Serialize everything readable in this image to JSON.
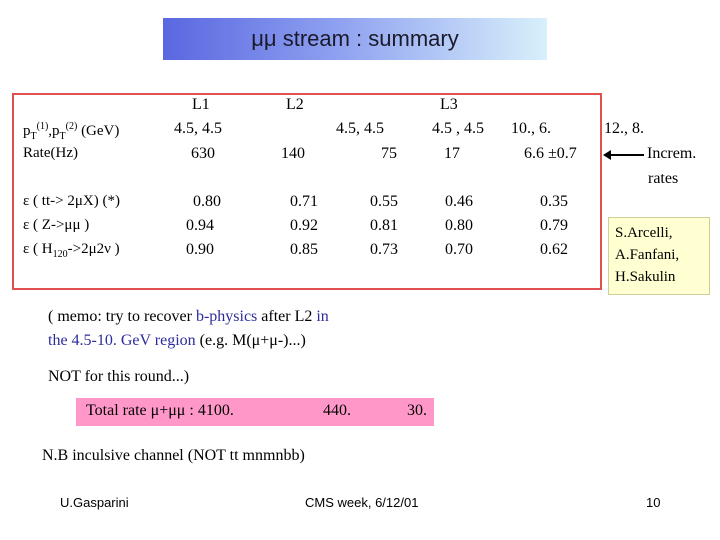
{
  "title": "μμ stream : summary",
  "table": {
    "headers": {
      "l1": "L1",
      "l2": "L2",
      "l3": "L3"
    },
    "pt_label": "p",
    "pt_sub1": "T",
    "pt_sup1": "(1)",
    "pt_sep": ",p",
    "pt_sub2": "T",
    "pt_sup2": "(2)",
    "pt_unit": " (GeV)",
    "rate_label": "Rate(Hz)",
    "pt_values": [
      "4.5, 4.5",
      "4.5, 4.5",
      "4.5 , 4.5",
      "10., 6.",
      "12., 8."
    ],
    "rate_values": [
      "630",
      "140",
      "75",
      "17",
      "6.6 ±0.7"
    ],
    "increm": "Increm.",
    "rates": "rates",
    "eff_rows": [
      {
        "label": "ε ( tt-> 2μX) (*)",
        "values": [
          "0.80",
          "0.71",
          "0.55",
          "0.46",
          "0.35"
        ]
      },
      {
        "label": "ε ( Z->μμ  )",
        "values": [
          "0.94",
          "0.92",
          "0.81",
          "0.80",
          "0.79"
        ]
      },
      {
        "label_pre": "ε ( H",
        "label_sub": "120",
        "label_post": "->2μ2ν )",
        "values": [
          "0.90",
          "0.85",
          "0.73",
          "0.70",
          "0.62"
        ]
      }
    ]
  },
  "authors": [
    "S.Arcelli,",
    "A.Fanfani,",
    "H.Sakulin"
  ],
  "memo": {
    "line1_a": "( memo:  try to recover ",
    "line1_b": "b-physics",
    "line1_c": " after L2 ",
    "line1_d": "in",
    "line2_a": "the 4.5-10. GeV region",
    "line2_b": " (e.g. M(μ+μ-)...)",
    "line3": "NOT for this round...)"
  },
  "total_rate": {
    "label": "Total rate μ+μμ  :  4100.",
    "v2": "440.",
    "v3": "30."
  },
  "nb": "N.B   inculsive channel (NOT tt mnmnbb)",
  "footer": {
    "author": "U.Gasparini",
    "event": "CMS week, 6/12/01",
    "page": "10"
  }
}
